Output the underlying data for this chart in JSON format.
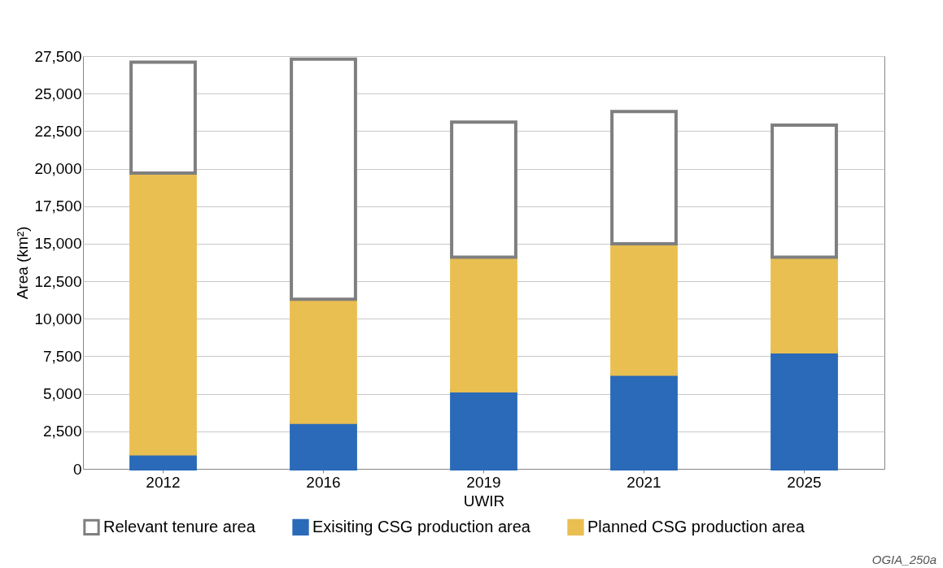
{
  "chart_data": {
    "type": "bar",
    "stacked": true,
    "xlabel": "UWIR",
    "ylabel": "Area (km²)",
    "categories": [
      "2012",
      "2016",
      "2019",
      "2021",
      "2025"
    ],
    "series": [
      {
        "name": "Exisiting CSG production area",
        "color": "#2a6ab8",
        "values": [
          1000,
          3100,
          5200,
          6300,
          7800
        ]
      },
      {
        "name": "Planned CSG production area",
        "color": "#e9bf52",
        "values": [
          18700,
          8200,
          8900,
          8700,
          6300
        ]
      },
      {
        "name": "Relevant tenure area",
        "color": "#ffffff",
        "values": [
          7400,
          16000,
          9000,
          8800,
          8800
        ]
      }
    ],
    "ylim": [
      0,
      27500
    ],
    "yticks": [
      0,
      {
        "value": 2500,
        "label": "2,500"
      },
      {
        "value": 5000,
        "label": "5,000"
      },
      {
        "value": 7500,
        "label": "7,500"
      },
      {
        "value": 10000,
        "label": "10,000"
      },
      {
        "value": 12500,
        "label": "12,500"
      },
      {
        "value": 15000,
        "label": "15,000"
      },
      {
        "value": 17500,
        "label": "17,500"
      },
      {
        "value": 20000,
        "label": "20,000"
      },
      {
        "value": 22500,
        "label": "22,500"
      },
      {
        "value": 25000,
        "label": "25,000"
      },
      {
        "value": 27500,
        "label": "27,500"
      }
    ],
    "grid": "y",
    "legend": "bottom",
    "annotations": [
      "OGIA_250a"
    ]
  }
}
